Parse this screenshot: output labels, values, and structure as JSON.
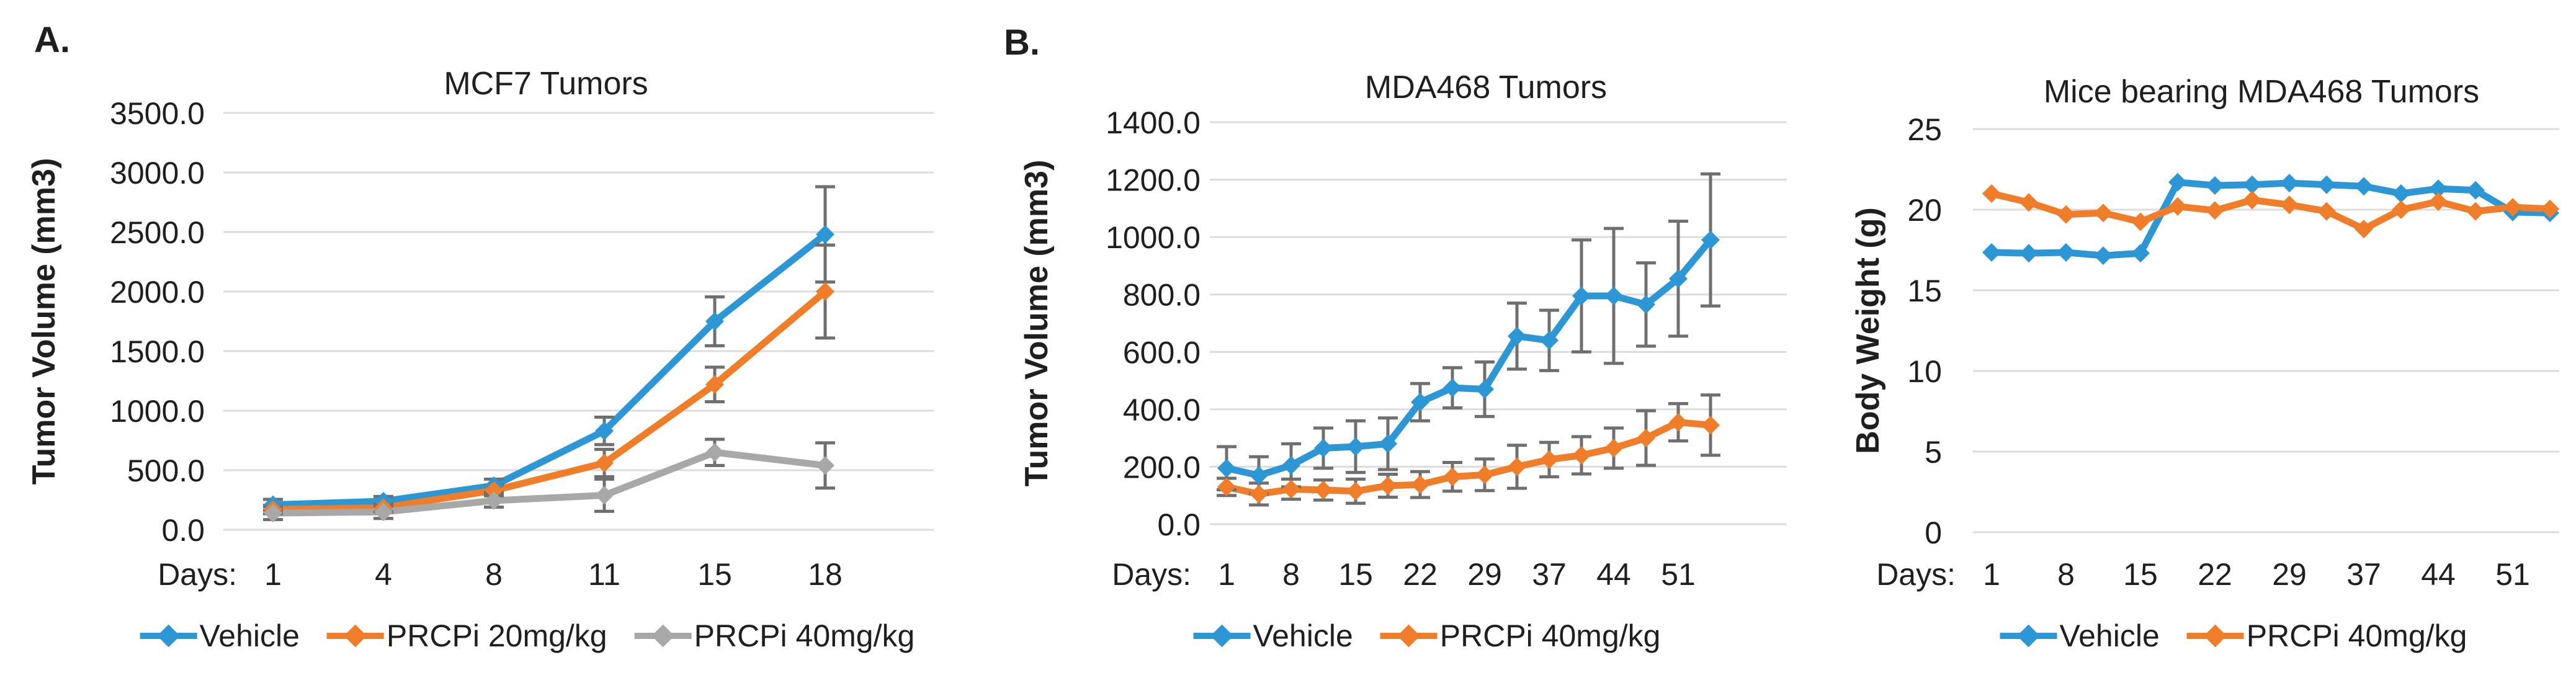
{
  "figure": {
    "panel_a_label": "A.",
    "panel_b_label": "B."
  },
  "colors": {
    "vehicle_blue": "#2D96D5",
    "prcpi_orange": "#F07D29",
    "prcpi40_gray": "#A8A8A8",
    "error_bar": "#6F6F6F",
    "gridline": "#DCDCDC",
    "text": "#1F1F1F"
  },
  "chart_data": [
    {
      "id": "mcf7-tumors",
      "type": "line",
      "title": "MCF7 Tumors",
      "ylabel": "Tumor Volume (mm3)",
      "xlabel_prefix": "Days:",
      "x_tick_labels": [
        "1",
        "4",
        "8",
        "11",
        "15",
        "18"
      ],
      "points_per_label": 1,
      "ylim": [
        0,
        3500
      ],
      "y_tick_step": 500,
      "y_tick_decimals": 1,
      "grid": true,
      "legend_position": "bottom",
      "series": [
        {
          "name": "Vehicle",
          "color": "#2D96D5",
          "values": [
            210,
            240,
            370,
            830,
            1750,
            2480
          ],
          "errors": [
            45,
            40,
            55,
            115,
            205,
            400
          ]
        },
        {
          "name": "PRCPi 20mg/kg",
          "color": "#F07D29",
          "values": [
            170,
            185,
            330,
            560,
            1220,
            2000
          ],
          "errors": [
            35,
            35,
            45,
            115,
            145,
            390
          ]
        },
        {
          "name": "PRCPi 40mg/kg",
          "color": "#A8A8A8",
          "values": [
            140,
            150,
            245,
            290,
            650,
            540
          ],
          "errors": [
            55,
            55,
            55,
            135,
            110,
            190
          ]
        }
      ]
    },
    {
      "id": "mda468-tumors",
      "type": "line",
      "title": "MDA468 Tumors",
      "ylabel": "Tumor Volume (mm3)",
      "xlabel_prefix": "Days:",
      "x_tick_labels": [
        "1",
        "8",
        "15",
        "22",
        "29",
        "37",
        "44",
        "51"
      ],
      "points_per_label": 2,
      "ylim": [
        0,
        1400
      ],
      "y_tick_step": 200,
      "y_tick_decimals": 1,
      "grid": true,
      "legend_position": "bottom",
      "series": [
        {
          "name": "Vehicle",
          "color": "#2D96D5",
          "values": [
            195,
            170,
            205,
            265,
            270,
            280,
            425,
            475,
            470,
            655,
            640,
            795,
            795,
            765,
            855,
            990
          ],
          "errors": [
            75,
            65,
            75,
            70,
            90,
            90,
            65,
            70,
            95,
            115,
            105,
            195,
            235,
            145,
            200,
            230
          ]
        },
        {
          "name": "PRCPi 40mg/kg",
          "color": "#F07D29",
          "values": [
            130,
            105,
            122,
            119,
            115,
            134,
            138,
            165,
            172,
            200,
            225,
            240,
            265,
            300,
            355,
            345
          ],
          "errors": [
            30,
            38,
            35,
            35,
            42,
            40,
            45,
            50,
            55,
            75,
            60,
            65,
            70,
            95,
            65,
            105
          ]
        }
      ]
    },
    {
      "id": "mice-bearing-mda468-tumors",
      "type": "line",
      "title": "Mice bearing MDA468 Tumors",
      "ylabel": "Body Weight (g)",
      "xlabel_prefix": "Days:",
      "x_tick_labels": [
        "1",
        "8",
        "15",
        "22",
        "29",
        "37",
        "44",
        "51"
      ],
      "points_per_label": 2,
      "ylim": [
        0,
        25
      ],
      "y_tick_step": 5,
      "y_tick_decimals": 0,
      "grid": true,
      "legend_position": "bottom",
      "series": [
        {
          "name": "Vehicle",
          "color": "#2D96D5",
          "values": [
            17.35,
            17.3,
            17.35,
            17.15,
            17.3,
            21.7,
            21.5,
            21.55,
            21.65,
            21.55,
            21.45,
            21.0,
            21.3,
            21.2,
            19.85,
            19.8
          ],
          "errors": []
        },
        {
          "name": "PRCPi 40mg/kg",
          "color": "#F07D29",
          "values": [
            21.0,
            20.45,
            19.7,
            19.8,
            19.25,
            20.2,
            19.95,
            20.6,
            20.3,
            19.9,
            18.8,
            20.0,
            20.5,
            19.9,
            20.15,
            20.05
          ],
          "errors": []
        }
      ]
    }
  ]
}
